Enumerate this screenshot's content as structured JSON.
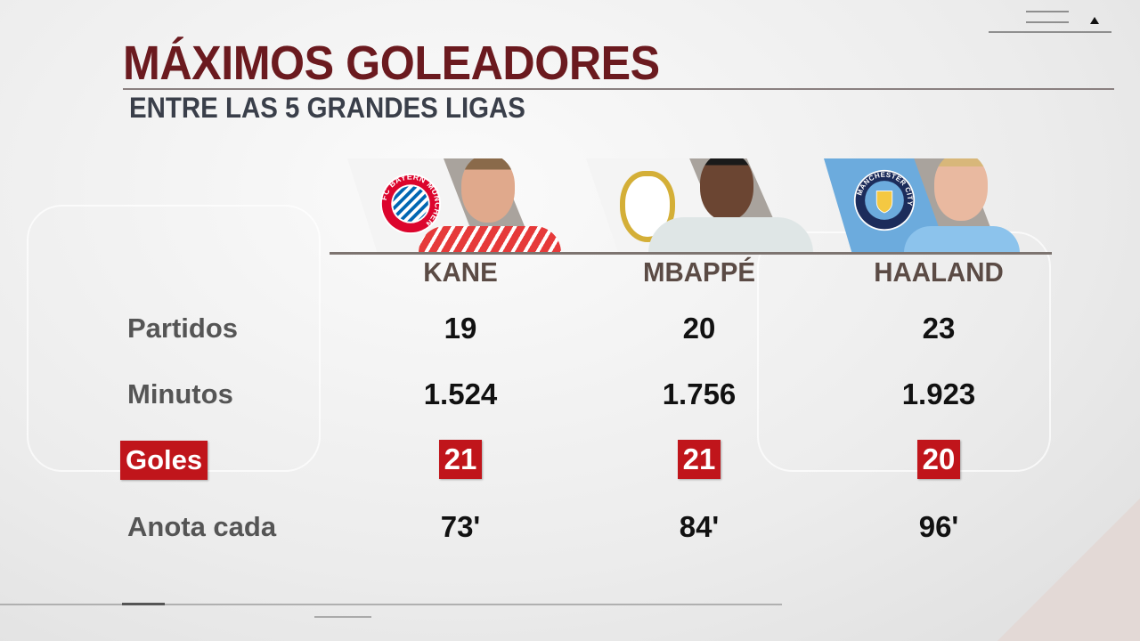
{
  "header": {
    "title": "MÁXIMOS GOLEADORES",
    "subtitle": "ENTRE LAS 5 GRANDES LIGAS"
  },
  "players": [
    {
      "name": "KANE",
      "club": "FC BAYERN MÜNCHEN",
      "club_color": "#dc052d"
    },
    {
      "name": "MBAPPÉ",
      "club": "Real Madrid",
      "club_color": "#d4af37"
    },
    {
      "name": "HAALAND",
      "club": "MANCHESTER CITY",
      "club_color": "#6cabdd"
    }
  ],
  "rows": [
    {
      "label": "Partidos",
      "values": [
        "19",
        "20",
        "23"
      ],
      "highlight": false
    },
    {
      "label": "Minutos",
      "values": [
        "1.524",
        "1.756",
        "1.923"
      ],
      "highlight": false
    },
    {
      "label": "Goles",
      "values": [
        "21",
        "21",
        "20"
      ],
      "highlight": true
    },
    {
      "label": "Anota cada",
      "values": [
        "73'",
        "84'",
        "96'"
      ],
      "highlight": false
    }
  ],
  "colors": {
    "title": "#6b1a1f",
    "highlight": "#c0151b"
  },
  "corner_icon": "triangle-up-icon"
}
